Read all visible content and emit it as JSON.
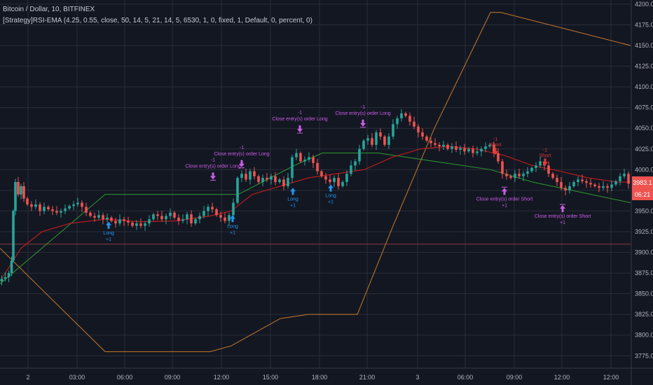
{
  "header": {
    "symbol": "Bitcoin / Dollar, 10, BITFINEX",
    "strategy": "[Strategy]RSI-EMA (4.25, 0.55, close, 50, 14, 5, 21, 14, 5, 6530, 1, 0, fixed, 1, Default, 0, percent, 0)"
  },
  "colors": {
    "background": "#131722",
    "grid": "#2a2e39",
    "up": "#26a69a",
    "down": "#ef5350",
    "ema": "#b71c1c",
    "green_line": "#2e9e30",
    "orange_line": "#c77b2c",
    "long": "#2196f3",
    "close": "#cc5de8",
    "short": "#e53935",
    "hline": "#8b3a3a"
  },
  "chart_data": {
    "type": "candlestick",
    "ylim": [
      3760,
      4205
    ],
    "yticks": [
      3775,
      3800,
      3825,
      3850,
      3875,
      3900,
      3925,
      3950,
      3975,
      4000,
      4025,
      4050,
      4075,
      4100,
      4125,
      4150,
      4175,
      4200
    ],
    "xticks": [
      "2",
      "03:00",
      "06:00",
      "09:00",
      "12:00",
      "15:00",
      "18:00",
      "21:00",
      "3",
      "06:00",
      "09:00",
      "12:00"
    ],
    "price_label": "3983.1",
    "time_label": "06:21",
    "horizontal_line": 3910,
    "price_path": [
      [
        0,
        3865
      ],
      [
        5,
        3868
      ],
      [
        10,
        3870
      ],
      [
        15,
        3875
      ],
      [
        18,
        3890
      ],
      [
        20,
        3950
      ],
      [
        24,
        3985
      ],
      [
        28,
        3970
      ],
      [
        32,
        3980
      ],
      [
        36,
        3965
      ],
      [
        42,
        3958
      ],
      [
        48,
        3955
      ],
      [
        54,
        3958
      ],
      [
        60,
        3950
      ],
      [
        66,
        3955
      ],
      [
        72,
        3952
      ],
      [
        78,
        3950
      ],
      [
        84,
        3948
      ],
      [
        90,
        3950
      ],
      [
        96,
        3953
      ],
      [
        102,
        3956
      ],
      [
        108,
        3958
      ],
      [
        114,
        3960
      ],
      [
        120,
        3955
      ],
      [
        126,
        3948
      ],
      [
        132,
        3944
      ],
      [
        138,
        3942
      ],
      [
        144,
        3945
      ],
      [
        150,
        3940
      ],
      [
        156,
        3942
      ],
      [
        162,
        3938
      ],
      [
        168,
        3935
      ],
      [
        174,
        3940
      ],
      [
        180,
        3938
      ],
      [
        186,
        3936
      ],
      [
        192,
        3932
      ],
      [
        198,
        3935
      ],
      [
        204,
        3932
      ],
      [
        210,
        3935
      ],
      [
        216,
        3940
      ],
      [
        222,
        3946
      ],
      [
        228,
        3944
      ],
      [
        234,
        3940
      ],
      [
        240,
        3944
      ],
      [
        246,
        3948
      ],
      [
        252,
        3942
      ],
      [
        258,
        3938
      ],
      [
        264,
        3940
      ],
      [
        270,
        3946
      ],
      [
        276,
        3935
      ],
      [
        282,
        3940
      ],
      [
        288,
        3944
      ],
      [
        294,
        3950
      ],
      [
        300,
        3955
      ],
      [
        306,
        3952
      ],
      [
        312,
        3945
      ],
      [
        318,
        3942
      ],
      [
        324,
        3938
      ],
      [
        330,
        3945
      ],
      [
        336,
        3960
      ],
      [
        342,
        3990
      ],
      [
        348,
        3995
      ],
      [
        354,
        3988
      ],
      [
        360,
        3998
      ],
      [
        366,
        3992
      ],
      [
        372,
        3985
      ],
      [
        378,
        3990
      ],
      [
        384,
        3988
      ],
      [
        390,
        3992
      ],
      [
        396,
        3985
      ],
      [
        402,
        3988
      ],
      [
        408,
        3980
      ],
      [
        414,
        3990
      ],
      [
        420,
        4015
      ],
      [
        426,
        4020
      ],
      [
        432,
        4010
      ],
      [
        438,
        4012
      ],
      [
        444,
        4015
      ],
      [
        450,
        4008
      ],
      [
        456,
        3998
      ],
      [
        462,
        3992
      ],
      [
        468,
        3988
      ],
      [
        474,
        3985
      ],
      [
        480,
        3990
      ],
      [
        486,
        3980
      ],
      [
        492,
        3985
      ],
      [
        498,
        3995
      ],
      [
        504,
        4005
      ],
      [
        510,
        4010
      ],
      [
        516,
        4025
      ],
      [
        522,
        4035
      ],
      [
        528,
        4038
      ],
      [
        534,
        4030
      ],
      [
        540,
        4045
      ],
      [
        546,
        4040
      ],
      [
        552,
        4030
      ],
      [
        558,
        4040
      ],
      [
        564,
        4055
      ],
      [
        570,
        4062
      ],
      [
        576,
        4068
      ],
      [
        582,
        4065
      ],
      [
        588,
        4058
      ],
      [
        594,
        4052
      ],
      [
        600,
        4045
      ],
      [
        606,
        4040
      ],
      [
        612,
        4035
      ],
      [
        618,
        4032
      ],
      [
        624,
        4030
      ],
      [
        630,
        4028
      ],
      [
        636,
        4030
      ],
      [
        642,
        4025
      ],
      [
        648,
        4028
      ],
      [
        654,
        4024
      ],
      [
        660,
        4026
      ],
      [
        666,
        4022
      ],
      [
        672,
        4025
      ],
      [
        678,
        4020
      ],
      [
        684,
        4022
      ],
      [
        690,
        4025
      ],
      [
        696,
        4028
      ],
      [
        702,
        4030
      ],
      [
        708,
        4020
      ],
      [
        714,
        4010
      ],
      [
        720,
        3995
      ],
      [
        726,
        3992
      ],
      [
        732,
        3990
      ],
      [
        738,
        3995
      ],
      [
        744,
        3992
      ],
      [
        750,
        3995
      ],
      [
        756,
        3998
      ],
      [
        762,
        4002
      ],
      [
        768,
        4005
      ],
      [
        774,
        4010
      ],
      [
        780,
        4005
      ],
      [
        786,
        3995
      ],
      [
        792,
        3990
      ],
      [
        798,
        3985
      ],
      [
        804,
        3978
      ],
      [
        810,
        3975
      ],
      [
        816,
        3980
      ],
      [
        822,
        3985
      ],
      [
        828,
        3988
      ],
      [
        834,
        3986
      ],
      [
        840,
        3984
      ],
      [
        846,
        3982
      ],
      [
        852,
        3980
      ],
      [
        858,
        3978
      ],
      [
        864,
        3980
      ],
      [
        870,
        3978
      ],
      [
        876,
        3982
      ],
      [
        882,
        3986
      ],
      [
        888,
        3992
      ],
      [
        894,
        3995
      ],
      [
        900,
        3983
      ]
    ],
    "ema_path": [
      [
        0,
        3865
      ],
      [
        30,
        3905
      ],
      [
        60,
        3925
      ],
      [
        100,
        3935
      ],
      [
        150,
        3940
      ],
      [
        200,
        3937
      ],
      [
        250,
        3938
      ],
      [
        300,
        3944
      ],
      [
        330,
        3950
      ],
      [
        360,
        3970
      ],
      [
        400,
        3980
      ],
      [
        440,
        3990
      ],
      [
        480,
        3995
      ],
      [
        520,
        4000
      ],
      [
        560,
        4015
      ],
      [
        600,
        4025
      ],
      [
        640,
        4028
      ],
      [
        680,
        4025
      ],
      [
        720,
        4017
      ],
      [
        760,
        4005
      ],
      [
        800,
        3998
      ],
      [
        840,
        3990
      ],
      [
        880,
        3985
      ],
      [
        900,
        3985
      ]
    ],
    "green_path": [
      [
        0,
        3862
      ],
      [
        150,
        3970
      ],
      [
        340,
        3970
      ],
      [
        420,
        4005
      ],
      [
        460,
        4020
      ],
      [
        540,
        4020
      ],
      [
        700,
        4000
      ],
      [
        760,
        3985
      ],
      [
        900,
        3960
      ]
    ],
    "orange_path": [
      [
        0,
        3905
      ],
      [
        150,
        3780
      ],
      [
        300,
        3780
      ],
      [
        330,
        3787
      ],
      [
        400,
        3820
      ],
      [
        440,
        3825
      ],
      [
        510,
        3825
      ],
      [
        560,
        3930
      ],
      [
        620,
        4050
      ],
      [
        700,
        4190
      ],
      [
        715,
        4190
      ],
      [
        900,
        4150
      ]
    ],
    "annotations": [
      {
        "kind": "long",
        "x": 155,
        "y": 3937,
        "text": "Long",
        "sub": "+1"
      },
      {
        "kind": "long",
        "x": 332,
        "y": 3945,
        "text": "Long",
        "sub": "+1"
      },
      {
        "kind": "long",
        "x": 418,
        "y": 3978,
        "text": "Long",
        "sub": "+1"
      },
      {
        "kind": "long",
        "x": 472,
        "y": 3982,
        "text": "Long",
        "sub": "+1"
      },
      {
        "kind": "close_long",
        "x": 304,
        "y": 3988,
        "text": "Close entry(s) order Long",
        "sub": "-1"
      },
      {
        "kind": "close_long",
        "x": 345,
        "y": 4003,
        "text": "Close entry(s) order Long",
        "sub": "-1"
      },
      {
        "kind": "close_long",
        "x": 428,
        "y": 4045,
        "text": "Close entry(s) order Long",
        "sub": "-1"
      },
      {
        "kind": "close_long",
        "x": 518,
        "y": 4052,
        "text": "Close entry(s) order Long",
        "sub": "-1"
      },
      {
        "kind": "close_short",
        "x": 720,
        "y": 3978,
        "text": "Close entry(s) order Short",
        "sub": "+1"
      },
      {
        "kind": "close_short",
        "x": 803,
        "y": 3957,
        "text": "Close entry(s) order Short",
        "sub": "+1"
      },
      {
        "kind": "short",
        "x": 707,
        "y": 4018,
        "text": "Short",
        "sub": "-1"
      },
      {
        "kind": "short",
        "x": 778,
        "y": 4005,
        "text": "Short",
        "sub": "-1"
      }
    ]
  }
}
